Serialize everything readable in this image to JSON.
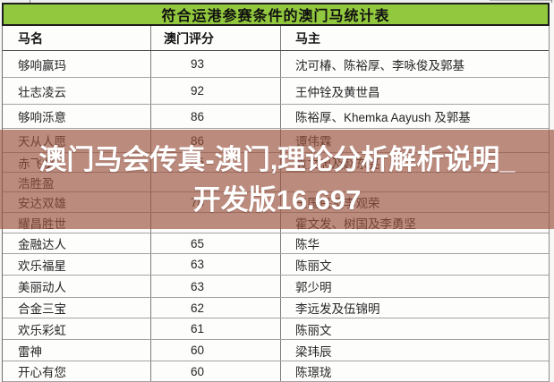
{
  "title": "符合运港参赛条件的澳门马统计表",
  "table": {
    "columns": [
      "马名",
      "澳门评分",
      "马主"
    ],
    "rows": [
      {
        "name": "够响赢玛",
        "rating": "93",
        "owner": "沈可椿、陈裕厚、李咏俊及郭基"
      },
      {
        "name": "壮志凌云",
        "rating": "92",
        "owner": "王仲铨及黄世昌"
      },
      {
        "name": "够响泺意",
        "rating": "86",
        "owner": "陈裕厚、Khemka Aayush 及郭基"
      },
      {
        "name": "天从人愿",
        "rating": "86",
        "owner": "谭伟霖"
      },
      {
        "name": "赤飞龙",
        "rating": "85",
        "owner": "袁文忠及赵东亮"
      },
      {
        "name": "浩胜盈",
        "rating": "",
        "owner": ""
      },
      {
        "name": "安达双雄",
        "rating": "78",
        "owner": "王国民及李观荣"
      },
      {
        "name": "耀昌胜世",
        "rating": "",
        "owner": "霍文发、树国及李勇坚"
      },
      {
        "name": "金融达人",
        "rating": "65",
        "owner": "陈华"
      },
      {
        "name": "欢乐福星",
        "rating": "63",
        "owner": "陈丽文"
      },
      {
        "name": "美丽动人",
        "rating": "63",
        "owner": "郭少明"
      },
      {
        "name": "合金三宝",
        "rating": "62",
        "owner": "李远发及伍锦明"
      },
      {
        "name": "欢乐彩虹",
        "rating": "61",
        "owner": "陈丽文"
      },
      {
        "name": "雷神",
        "rating": "60",
        "owner": "梁玮辰"
      },
      {
        "name": "开心有您",
        "rating": "60",
        "owner": "陈璟珑"
      }
    ]
  },
  "watermark": {
    "line1": "澳门马会传真-澳门,理论分析解析说明_",
    "line2": "开发版16.697"
  },
  "colors": {
    "title_bg": "#92c83e",
    "title_border": "#1e1e1e",
    "watermark_band": "rgba(154,82,63,0.67)",
    "watermark_text": "#ffffff"
  }
}
